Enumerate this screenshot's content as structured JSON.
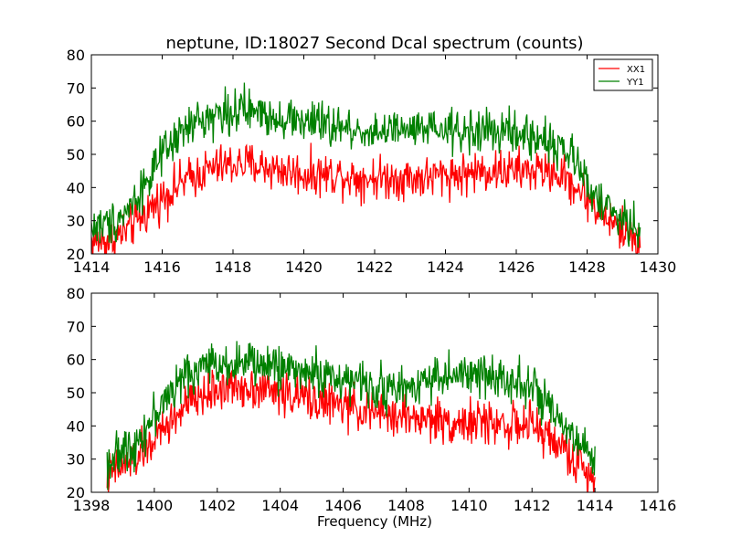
{
  "chart_data": [
    {
      "type": "line",
      "title": "neptune, ID:18027 Second Dcal spectrum (counts)",
      "xlabel": "",
      "ylabel": "",
      "xlim": [
        1414,
        1430
      ],
      "ylim": [
        20,
        80
      ],
      "xticks": [
        1414,
        1416,
        1418,
        1420,
        1422,
        1424,
        1426,
        1428,
        1430
      ],
      "yticks": [
        20,
        30,
        40,
        50,
        60,
        70,
        80
      ],
      "grid": false,
      "legend": "top-right",
      "noise": 5,
      "series": [
        {
          "name": "XX1",
          "color": "#ff0000",
          "x": [
            1414.0,
            1414.5,
            1415.0,
            1415.5,
            1416.0,
            1416.5,
            1417.0,
            1417.5,
            1418.0,
            1418.5,
            1419.0,
            1419.5,
            1420.0,
            1420.5,
            1421.0,
            1421.5,
            1422.0,
            1422.5,
            1423.0,
            1423.5,
            1424.0,
            1424.5,
            1425.0,
            1425.5,
            1426.0,
            1426.5,
            1427.0,
            1427.5,
            1428.0,
            1428.5,
            1429.0,
            1429.5
          ],
          "values": [
            24,
            24,
            27,
            32,
            37,
            41,
            44,
            46,
            47,
            47,
            46,
            45,
            44,
            44,
            44,
            43,
            43,
            43,
            43,
            43,
            44,
            44,
            45,
            45,
            45,
            45,
            45,
            42,
            37,
            31,
            27,
            24
          ]
        },
        {
          "name": "YY1",
          "color": "#008000",
          "x": [
            1414.0,
            1414.5,
            1415.0,
            1415.5,
            1416.0,
            1416.5,
            1417.0,
            1417.5,
            1418.0,
            1418.5,
            1419.0,
            1419.5,
            1420.0,
            1420.5,
            1421.0,
            1421.5,
            1422.0,
            1422.5,
            1423.0,
            1423.5,
            1424.0,
            1424.5,
            1425.0,
            1425.5,
            1426.0,
            1426.5,
            1427.0,
            1427.5,
            1428.0,
            1428.5,
            1429.0,
            1429.5
          ],
          "values": [
            28,
            29,
            33,
            41,
            49,
            56,
            60,
            62,
            63,
            63,
            62,
            61,
            60,
            59,
            58,
            57,
            57,
            57,
            57,
            57,
            57,
            57,
            57,
            57,
            56,
            55,
            54,
            50,
            42,
            34,
            30,
            28
          ]
        }
      ]
    },
    {
      "type": "line",
      "title": "",
      "xlabel": "Frequency (MHz)",
      "ylabel": "",
      "xlim": [
        1398,
        1416
      ],
      "ylim": [
        20,
        80
      ],
      "xticks": [
        1398,
        1400,
        1402,
        1404,
        1406,
        1408,
        1410,
        1412,
        1414,
        1416
      ],
      "yticks": [
        20,
        30,
        40,
        50,
        60,
        70,
        80
      ],
      "grid": false,
      "legend": "none",
      "noise": 5,
      "series": [
        {
          "name": "XX1",
          "color": "#ff0000",
          "x": [
            1398.5,
            1399.0,
            1399.5,
            1400.0,
            1400.5,
            1401.0,
            1401.5,
            1402.0,
            1402.5,
            1403.0,
            1403.5,
            1404.0,
            1404.5,
            1405.0,
            1405.5,
            1406.0,
            1406.5,
            1407.0,
            1407.5,
            1408.0,
            1408.5,
            1409.0,
            1409.5,
            1410.0,
            1410.5,
            1411.0,
            1411.5,
            1412.0,
            1412.5,
            1413.0,
            1413.5,
            1414.0
          ],
          "values": [
            25,
            28,
            31,
            36,
            41,
            46,
            49,
            51,
            52,
            52,
            51,
            50,
            49,
            48,
            47,
            46,
            45,
            44,
            43,
            43,
            42,
            42,
            41,
            41,
            41,
            41,
            40,
            40,
            37,
            33,
            28,
            24
          ]
        },
        {
          "name": "YY1",
          "color": "#008000",
          "x": [
            1398.5,
            1399.0,
            1399.5,
            1400.0,
            1400.5,
            1401.0,
            1401.5,
            1402.0,
            1402.5,
            1403.0,
            1403.5,
            1404.0,
            1404.5,
            1405.0,
            1405.5,
            1406.0,
            1406.5,
            1407.0,
            1407.5,
            1408.0,
            1408.5,
            1409.0,
            1409.5,
            1410.0,
            1410.5,
            1411.0,
            1411.5,
            1412.0,
            1412.5,
            1413.0,
            1413.5,
            1414.0
          ],
          "values": [
            29,
            32,
            36,
            43,
            50,
            55,
            58,
            59,
            59,
            59,
            58,
            58,
            57,
            56,
            55,
            54,
            53,
            52,
            51,
            51,
            54,
            55,
            55,
            55,
            55,
            55,
            54,
            52,
            45,
            39,
            34,
            31
          ]
        }
      ]
    }
  ]
}
